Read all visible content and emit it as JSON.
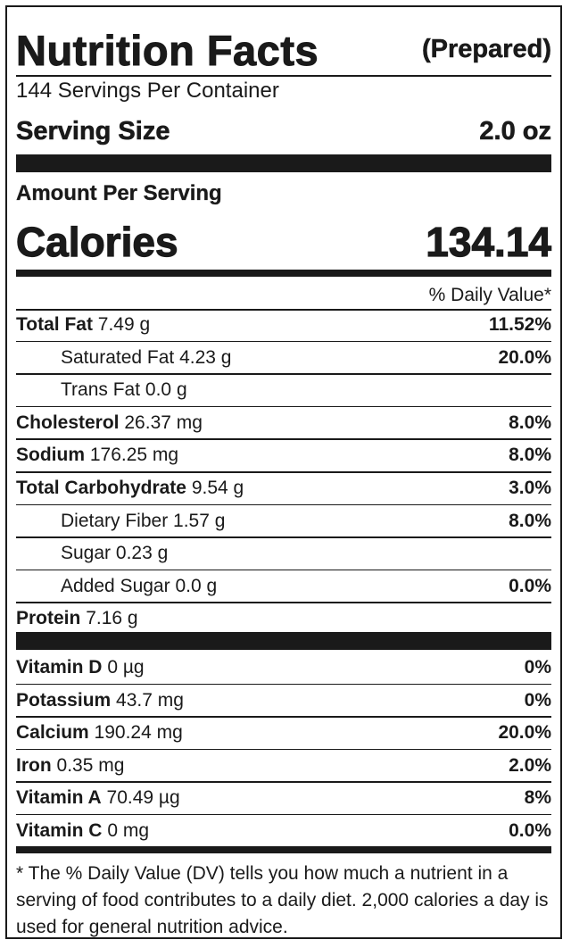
{
  "header": {
    "title": "Nutrition Facts",
    "subtitle": "(Prepared)"
  },
  "servings": "144 Servings Per Container",
  "serving_size": {
    "label": "Serving Size",
    "value": "2.0 oz"
  },
  "amount_per_serving": "Amount Per Serving",
  "calories": {
    "label": "Calories",
    "value": "134.14"
  },
  "dv_header": "% Daily Value*",
  "nutrients": [
    {
      "name": "Total Fat",
      "amount": "7.49 g",
      "dv": "11.52%",
      "indent": false
    },
    {
      "name": "Saturated Fat",
      "amount": "4.23 g",
      "dv": "20.0%",
      "indent": true
    },
    {
      "name": "Trans Fat",
      "amount": "0.0 g",
      "dv": "",
      "indent": true
    },
    {
      "name": "Cholesterol",
      "amount": "26.37 mg",
      "dv": "8.0%",
      "indent": false
    },
    {
      "name": "Sodium",
      "amount": "176.25 mg",
      "dv": "8.0%",
      "indent": false
    },
    {
      "name": "Total Carbohydrate",
      "amount": "9.54 g",
      "dv": "3.0%",
      "indent": false
    },
    {
      "name": "Dietary Fiber",
      "amount": "1.57 g",
      "dv": "8.0%",
      "indent": true
    },
    {
      "name": "Sugar",
      "amount": "0.23 g",
      "dv": "",
      "indent": true
    },
    {
      "name": "Added Sugar",
      "amount": "0.0 g",
      "dv": "0.0%",
      "indent": true
    },
    {
      "name": "Protein",
      "amount": "7.16 g",
      "dv": "",
      "indent": false
    }
  ],
  "vitamins": [
    {
      "name": "Vitamin D",
      "amount": "0 µg",
      "dv": "0%"
    },
    {
      "name": "Potassium",
      "amount": "43.7 mg",
      "dv": "0%"
    },
    {
      "name": "Calcium",
      "amount": "190.24 mg",
      "dv": "20.0%"
    },
    {
      "name": "Iron",
      "amount": "0.35 mg",
      "dv": "2.0%"
    },
    {
      "name": "Vitamin A",
      "amount": "70.49 µg",
      "dv": "8%"
    },
    {
      "name": "Vitamin C",
      "amount": "0 mg",
      "dv": "0.0%"
    }
  ],
  "footnote": "* The % Daily Value (DV) tells you how much a nutrient in a serving of food contributes to a daily diet. 2,000 calories a day is used for general nutrition advice."
}
